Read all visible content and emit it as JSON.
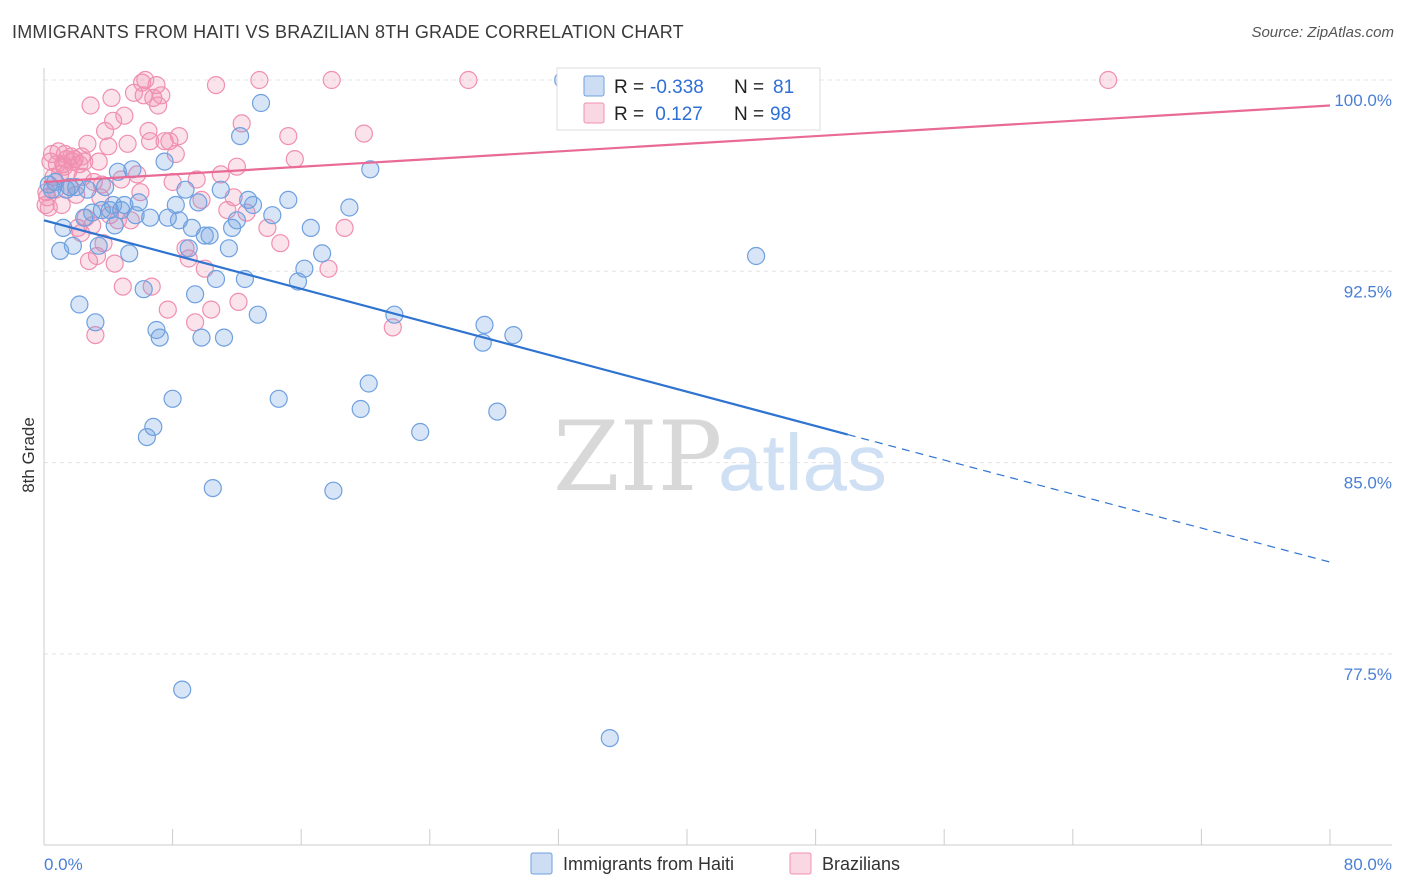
{
  "header": {
    "title": "IMMIGRANTS FROM HAITI VS BRAZILIAN 8TH GRADE CORRELATION CHART",
    "source": "Source: ZipAtlas.com"
  },
  "watermark": {
    "zip": "ZIP",
    "atlas": "atlas"
  },
  "legend_box": {
    "rows": [
      {
        "r_label": "R =",
        "r_value": "-0.338",
        "n_label": "N =",
        "n_value": "81"
      },
      {
        "r_label": "R =",
        "r_value": " 0.127",
        "n_label": "N =",
        "n_value": "98"
      }
    ]
  },
  "chart_data": {
    "type": "scatter",
    "title": "IMMIGRANTS FROM HAITI VS BRAZILIAN 8TH GRADE CORRELATION CHART",
    "xlabel": "",
    "ylabel": "8th Grade",
    "xlim": [
      0,
      80
    ],
    "ylim": [
      71,
      101
    ],
    "x_tick_labels": [
      "0.0%",
      "80.0%"
    ],
    "y_ticks": [
      77.5,
      85.0,
      92.5,
      100.0
    ],
    "y_tick_labels": [
      "77.5%",
      "85.0%",
      "92.5%",
      "100.0%"
    ],
    "grid": true,
    "colors": {
      "haiti": "#6fa0e0",
      "haiti_line": "#2f74d0",
      "brazil": "#f08fb0",
      "brazil_line": "#e86a95"
    },
    "series": [
      {
        "name": "Immigrants from Haiti",
        "R": -0.338,
        "N": 81,
        "trend": {
          "x0": 0,
          "y0": 94.5,
          "x1": 50,
          "y1": 86.1,
          "x_dash_end": 80,
          "y_dash_end": 81.1
        },
        "points": [
          [
            0.3,
            95.9
          ],
          [
            0.5,
            95.7
          ],
          [
            0.7,
            96.0
          ],
          [
            1.0,
            93.3
          ],
          [
            1.2,
            94.2
          ],
          [
            1.4,
            95.7
          ],
          [
            1.6,
            95.8
          ],
          [
            1.8,
            93.5
          ],
          [
            2.2,
            91.2
          ],
          [
            2.5,
            94.6
          ],
          [
            2.7,
            95.7
          ],
          [
            3.0,
            94.8
          ],
          [
            3.2,
            90.5
          ],
          [
            3.4,
            93.5
          ],
          [
            3.6,
            94.9
          ],
          [
            3.8,
            95.8
          ],
          [
            4.1,
            94.9
          ],
          [
            4.4,
            94.3
          ],
          [
            4.6,
            96.4
          ],
          [
            4.8,
            94.9
          ],
          [
            5.0,
            95.1
          ],
          [
            5.3,
            93.2
          ],
          [
            5.5,
            96.5
          ],
          [
            5.7,
            94.7
          ],
          [
            5.9,
            95.2
          ],
          [
            6.2,
            91.8
          ],
          [
            6.4,
            86.0
          ],
          [
            6.6,
            94.6
          ],
          [
            6.8,
            86.4
          ],
          [
            7.0,
            90.2
          ],
          [
            7.2,
            89.9
          ],
          [
            7.5,
            96.8
          ],
          [
            7.7,
            94.6
          ],
          [
            8.0,
            87.5
          ],
          [
            8.2,
            95.1
          ],
          [
            8.4,
            94.5
          ],
          [
            8.6,
            76.1
          ],
          [
            8.8,
            95.7
          ],
          [
            9.0,
            93.4
          ],
          [
            9.2,
            94.2
          ],
          [
            9.4,
            91.6
          ],
          [
            9.6,
            95.2
          ],
          [
            9.8,
            89.9
          ],
          [
            10.0,
            93.9
          ],
          [
            10.3,
            93.9
          ],
          [
            10.5,
            84.0
          ],
          [
            10.7,
            92.2
          ],
          [
            11.0,
            95.7
          ],
          [
            11.2,
            89.9
          ],
          [
            11.5,
            93.4
          ],
          [
            11.7,
            94.2
          ],
          [
            12.0,
            94.5
          ],
          [
            12.2,
            97.8
          ],
          [
            12.5,
            92.2
          ],
          [
            12.7,
            95.3
          ],
          [
            13.0,
            95.1
          ],
          [
            13.5,
            99.1
          ],
          [
            13.3,
            90.8
          ],
          [
            14.2,
            94.7
          ],
          [
            14.6,
            87.5
          ],
          [
            15.2,
            95.3
          ],
          [
            15.8,
            92.1
          ],
          [
            16.2,
            92.6
          ],
          [
            16.6,
            94.2
          ],
          [
            17.3,
            93.2
          ],
          [
            18.0,
            83.9
          ],
          [
            19.0,
            95.0
          ],
          [
            19.7,
            87.1
          ],
          [
            20.3,
            96.5
          ],
          [
            20.2,
            88.1
          ],
          [
            21.8,
            90.8
          ],
          [
            23.4,
            86.2
          ],
          [
            27.3,
            89.7
          ],
          [
            27.4,
            90.4
          ],
          [
            28.2,
            87.0
          ],
          [
            29.2,
            90.0
          ],
          [
            32.3,
            100.0
          ],
          [
            35.2,
            74.2
          ],
          [
            44.3,
            93.1
          ],
          [
            4.3,
            95.1
          ],
          [
            2.0,
            95.8
          ]
        ]
      },
      {
        "name": "Brazilians",
        "R": 0.127,
        "N": 98,
        "trend": {
          "x0": 0,
          "y0": 96.0,
          "x1": 80,
          "y1": 99.0
        },
        "points": [
          [
            0.2,
            95.4
          ],
          [
            0.3,
            95.0
          ],
          [
            0.4,
            96.8
          ],
          [
            0.5,
            97.1
          ],
          [
            0.6,
            96.2
          ],
          [
            0.7,
            95.7
          ],
          [
            0.8,
            96.7
          ],
          [
            0.9,
            97.2
          ],
          [
            1.0,
            96.3
          ],
          [
            1.1,
            95.1
          ],
          [
            1.2,
            96.7
          ],
          [
            1.3,
            97.1
          ],
          [
            1.4,
            96.9
          ],
          [
            1.5,
            96.4
          ],
          [
            1.6,
            95.8
          ],
          [
            1.7,
            97.0
          ],
          [
            1.8,
            96.8
          ],
          [
            2.0,
            95.5
          ],
          [
            2.1,
            94.2
          ],
          [
            2.2,
            96.7
          ],
          [
            2.3,
            94.0
          ],
          [
            2.4,
            96.2
          ],
          [
            2.5,
            96.8
          ],
          [
            2.6,
            94.6
          ],
          [
            2.7,
            97.5
          ],
          [
            2.8,
            92.9
          ],
          [
            2.9,
            99.0
          ],
          [
            3.0,
            94.3
          ],
          [
            3.1,
            96.0
          ],
          [
            3.2,
            90.0
          ],
          [
            3.3,
            93.1
          ],
          [
            3.4,
            96.8
          ],
          [
            3.5,
            95.4
          ],
          [
            3.6,
            95.9
          ],
          [
            3.7,
            93.6
          ],
          [
            3.8,
            98.0
          ],
          [
            4.0,
            97.4
          ],
          [
            4.1,
            94.7
          ],
          [
            4.2,
            99.3
          ],
          [
            4.3,
            98.4
          ],
          [
            4.4,
            92.8
          ],
          [
            4.6,
            94.5
          ],
          [
            4.8,
            96.1
          ],
          [
            4.9,
            91.9
          ],
          [
            5.0,
            98.6
          ],
          [
            5.2,
            97.5
          ],
          [
            5.4,
            94.5
          ],
          [
            5.6,
            99.5
          ],
          [
            5.8,
            96.3
          ],
          [
            6.0,
            95.6
          ],
          [
            6.1,
            99.9
          ],
          [
            6.2,
            99.4
          ],
          [
            6.3,
            100.0
          ],
          [
            6.5,
            98.0
          ],
          [
            6.6,
            97.6
          ],
          [
            6.7,
            91.9
          ],
          [
            6.8,
            99.3
          ],
          [
            7.0,
            99.8
          ],
          [
            7.1,
            99.0
          ],
          [
            7.3,
            99.4
          ],
          [
            7.5,
            97.6
          ],
          [
            7.7,
            91.0
          ],
          [
            7.8,
            97.6
          ],
          [
            8.0,
            96.0
          ],
          [
            8.2,
            97.1
          ],
          [
            8.4,
            97.8
          ],
          [
            8.8,
            93.4
          ],
          [
            9.0,
            93.0
          ],
          [
            9.4,
            90.5
          ],
          [
            9.5,
            96.1
          ],
          [
            9.8,
            95.3
          ],
          [
            10.0,
            92.6
          ],
          [
            10.4,
            91.0
          ],
          [
            10.7,
            99.8
          ],
          [
            11.0,
            96.3
          ],
          [
            11.4,
            94.9
          ],
          [
            11.8,
            95.4
          ],
          [
            12.0,
            96.6
          ],
          [
            12.1,
            91.3
          ],
          [
            12.3,
            98.3
          ],
          [
            12.6,
            94.8
          ],
          [
            13.4,
            100.0
          ],
          [
            13.9,
            94.2
          ],
          [
            14.7,
            93.6
          ],
          [
            15.2,
            97.8
          ],
          [
            15.6,
            96.9
          ],
          [
            17.7,
            92.6
          ],
          [
            17.9,
            100.0
          ],
          [
            18.7,
            94.2
          ],
          [
            19.9,
            97.9
          ],
          [
            21.7,
            90.3
          ],
          [
            26.4,
            100.0
          ],
          [
            66.2,
            100.0
          ],
          [
            1.9,
            96.9
          ],
          [
            0.1,
            95.1
          ],
          [
            0.15,
            95.6
          ],
          [
            1.25,
            96.6
          ],
          [
            2.35,
            97.0
          ]
        ]
      }
    ]
  },
  "bottom_legend": {
    "items": [
      "Immigrants from Haiti",
      "Brazilians"
    ]
  }
}
